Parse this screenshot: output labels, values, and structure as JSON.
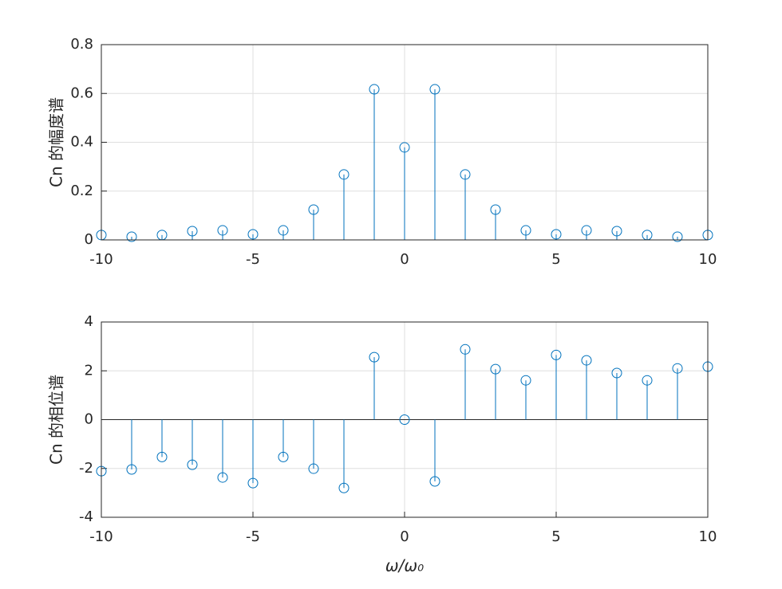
{
  "chart_data": [
    {
      "type": "stem",
      "ylabel": "Cn 的幅度谱",
      "color": "#0072bd",
      "grid": true,
      "x": [
        -10,
        -9,
        -8,
        -7,
        -6,
        -5,
        -4,
        -3,
        -2,
        -1,
        0,
        1,
        2,
        3,
        4,
        5,
        6,
        7,
        8,
        9,
        10
      ],
      "values": [
        0.02,
        0.013,
        0.02,
        0.036,
        0.039,
        0.023,
        0.039,
        0.124,
        0.268,
        0.617,
        0.379,
        0.617,
        0.268,
        0.124,
        0.039,
        0.023,
        0.039,
        0.036,
        0.02,
        0.013,
        0.02
      ],
      "xlim": [
        -10,
        10
      ],
      "xticks": [
        -10,
        -5,
        0,
        5,
        10
      ],
      "ylim": [
        0,
        0.8
      ],
      "yticks": [
        0,
        0.2,
        0.4,
        0.6,
        0.8
      ]
    },
    {
      "type": "stem",
      "ylabel": "Cn 的相位谱",
      "xlabel": "ω/ω₀",
      "color": "#0072bd",
      "grid": true,
      "x": [
        -10,
        -9,
        -8,
        -7,
        -6,
        -5,
        -4,
        -3,
        -2,
        -1,
        0,
        1,
        2,
        3,
        4,
        5,
        6,
        7,
        8,
        9,
        10
      ],
      "values": [
        -2.11,
        -2.04,
        -1.53,
        -1.85,
        -2.37,
        -2.6,
        -1.53,
        -2.01,
        -2.8,
        2.56,
        0,
        -2.53,
        2.88,
        2.07,
        1.61,
        2.65,
        2.43,
        1.91,
        1.61,
        2.1,
        2.17
      ],
      "xlim": [
        -10,
        10
      ],
      "xticks": [
        -10,
        -5,
        0,
        5,
        10
      ],
      "ylim": [
        -4,
        4
      ],
      "yticks": [
        -4,
        -2,
        0,
        2,
        4
      ]
    }
  ]
}
